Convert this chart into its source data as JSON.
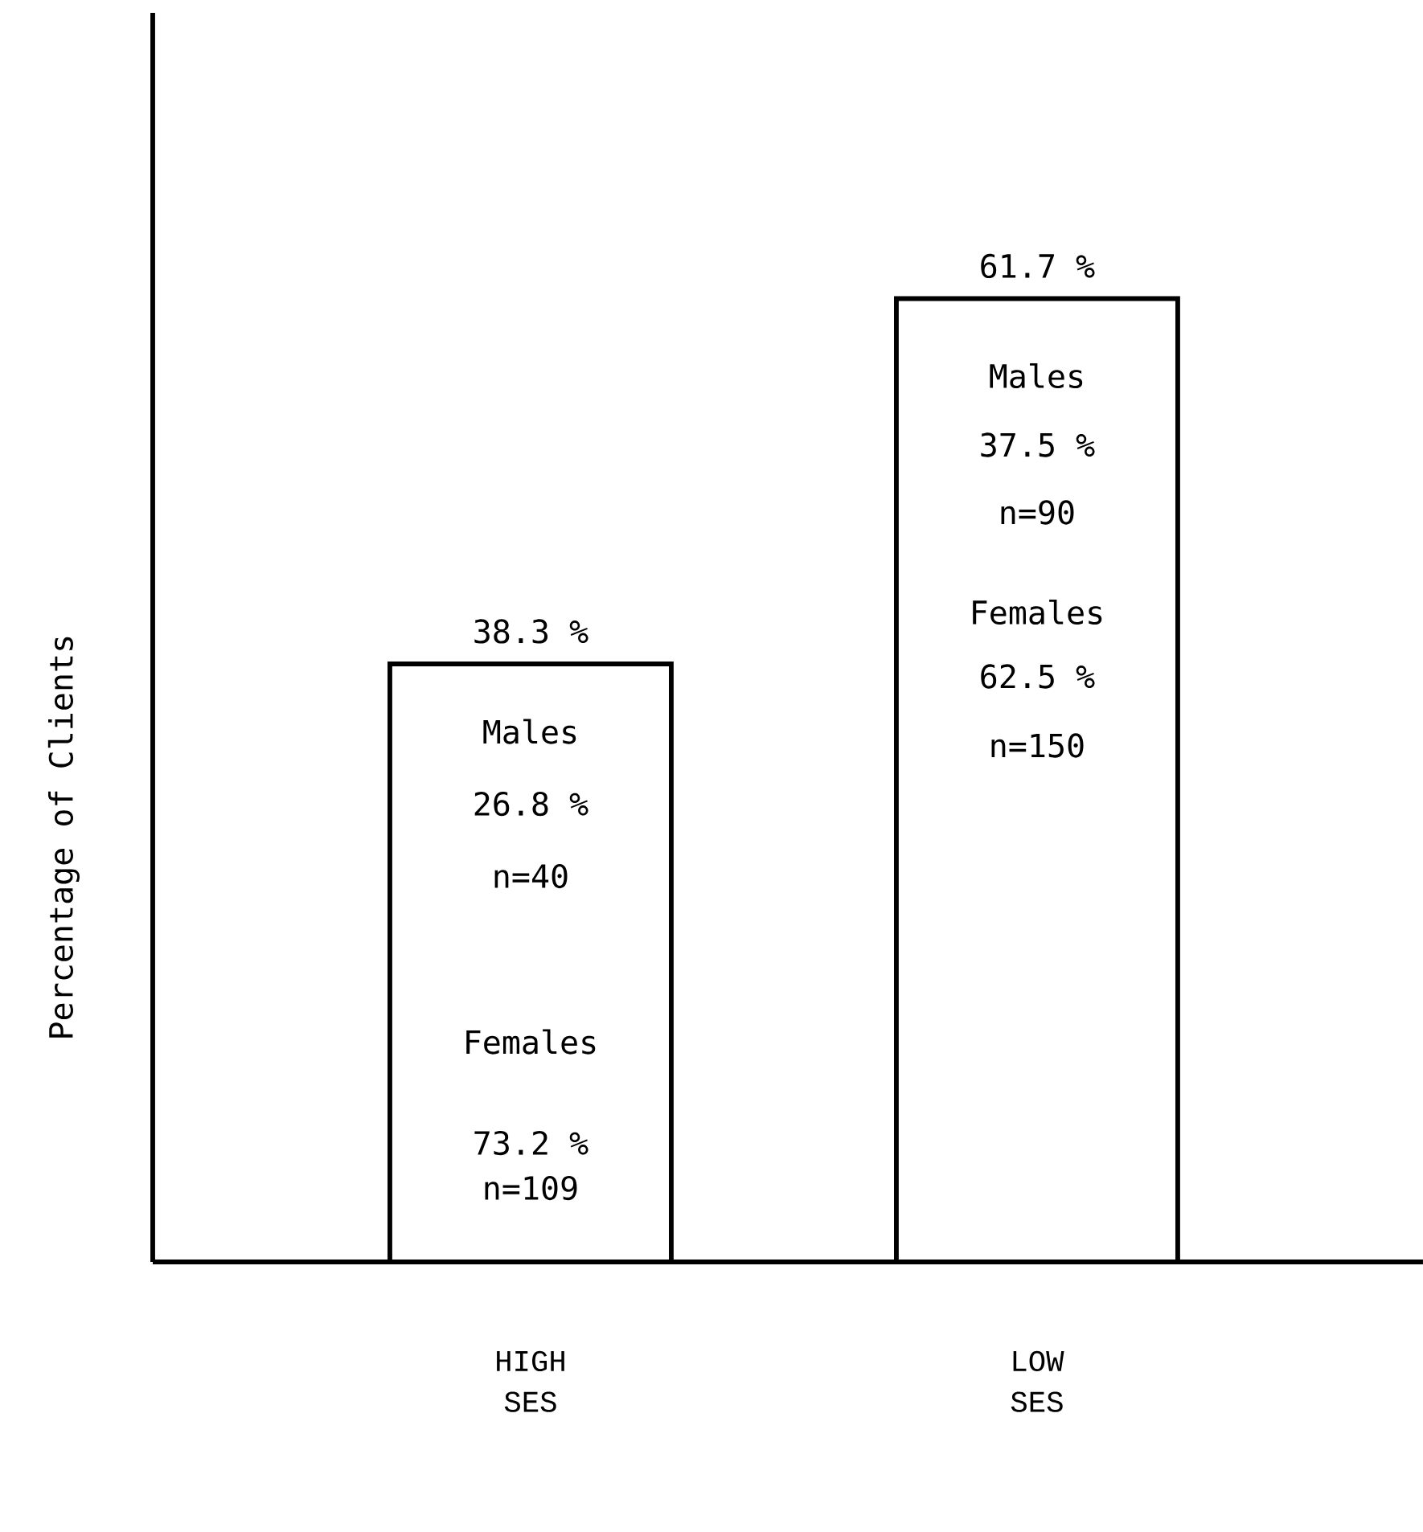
{
  "chart_data": {
    "type": "bar",
    "ylabel": "Percentage of Clients",
    "categories": [
      "HIGH SES",
      "LOW SES"
    ],
    "values": [
      38.3,
      61.7
    ],
    "value_labels": [
      "38.3 %",
      "61.7 %"
    ],
    "color": "#000000",
    "ylim": [
      0,
      80
    ],
    "annotations": [
      "Males",
      "26.8 %",
      "n=40",
      "Females",
      "73.2 %",
      "n=109",
      "Males",
      "37.5 %",
      "n=90",
      "Females",
      "62.5 %",
      "n=150"
    ]
  }
}
